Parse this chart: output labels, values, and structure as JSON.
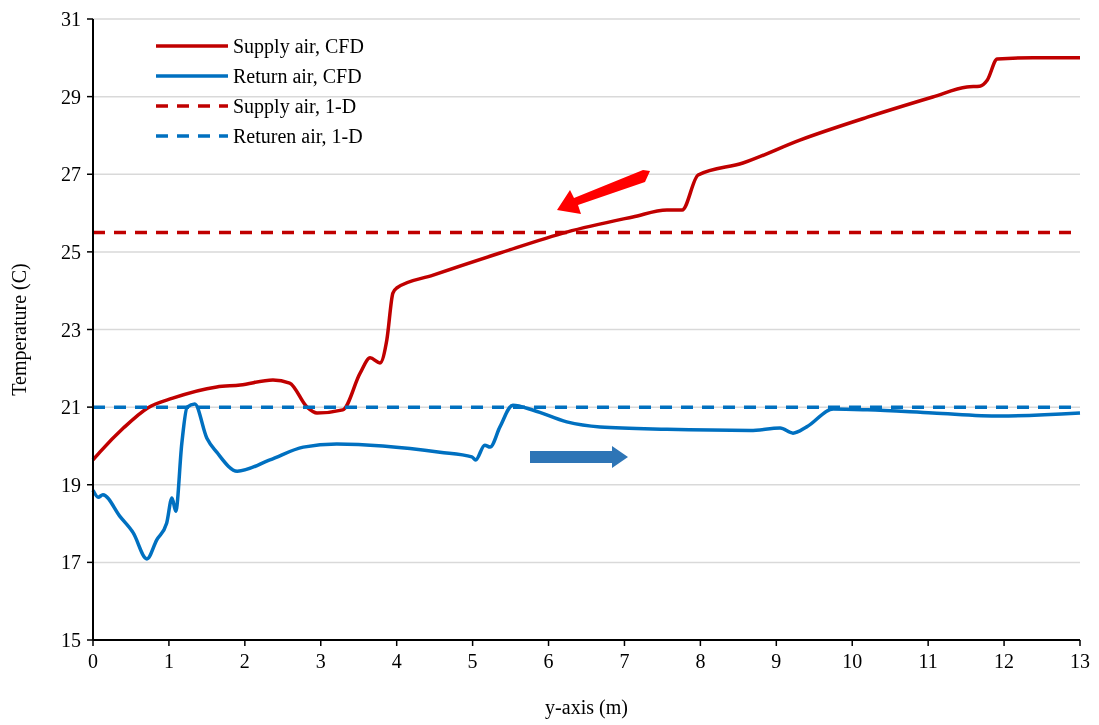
{
  "chart_data": {
    "type": "line",
    "xlabel": "y-axis (m)",
    "ylabel": "Temperature (C)",
    "xlim": [
      0,
      13
    ],
    "xticks": [
      0,
      1,
      2,
      3,
      4,
      5,
      6,
      7,
      8,
      9,
      10,
      11,
      12,
      13
    ],
    "ylim": [
      15,
      31
    ],
    "yticks": [
      15,
      17,
      19,
      21,
      23,
      25,
      27,
      29,
      31
    ],
    "grid": "y",
    "legend": "top left",
    "marker": "none",
    "series": [
      {
        "name": "Supply air, CFD",
        "color": "#c00000",
        "line_style": "solid",
        "x": [
          0,
          0.09,
          0.4,
          0.72,
          1.05,
          1.63,
          1.94,
          2.37,
          2.59,
          2.82,
          2.95,
          3.29,
          3.52,
          3.65,
          3.78,
          3.87,
          3.95,
          4.0,
          4.48,
          5.36,
          6.24,
          7.11,
          7.56,
          7.76,
          7.97,
          8.56,
          9.31,
          10.2,
          11.06,
          11.51,
          11.68,
          11.78,
          11.91,
          12.38,
          13
        ],
        "values": [
          19.64,
          19.84,
          20.46,
          20.98,
          21.23,
          21.52,
          21.57,
          21.7,
          21.62,
          21.0,
          20.85,
          20.93,
          21.88,
          22.27,
          22.14,
          22.73,
          23.94,
          24.07,
          24.4,
          24.97,
          25.51,
          25.9,
          26.08,
          26.08,
          26.98,
          27.29,
          27.88,
          28.47,
          28.99,
          29.25,
          29.27,
          29.43,
          29.97,
          30.0,
          30.0
        ]
      },
      {
        "name": "Return air, CFD",
        "color": "#0070c0",
        "line_style": "solid",
        "x": [
          0,
          0.07,
          0.13,
          0.36,
          0.53,
          0.71,
          0.84,
          0.97,
          1.04,
          1.09,
          1.17,
          1.24,
          1.34,
          1.5,
          1.63,
          1.9,
          2.33,
          2.77,
          3.21,
          4.57,
          4.99,
          5.04,
          5.16,
          5.23,
          5.36,
          5.53,
          5.8,
          6.24,
          6.68,
          7.56,
          8.66,
          9.05,
          9.22,
          9.4,
          9.75,
          10.2,
          11.06,
          11.95,
          13
        ],
        "values": [
          18.86,
          18.68,
          18.74,
          18.17,
          17.76,
          17.09,
          17.58,
          18.01,
          18.66,
          18.32,
          20.07,
          21.0,
          21.08,
          20.2,
          19.84,
          19.35,
          19.64,
          19.97,
          20.05,
          19.84,
          19.72,
          19.64,
          20.02,
          19.97,
          20.49,
          21.05,
          20.92,
          20.62,
          20.49,
          20.43,
          20.4,
          20.46,
          20.33,
          20.49,
          20.95,
          20.93,
          20.85,
          20.77,
          20.85
        ]
      },
      {
        "name": "Supply air, 1-D",
        "color": "#c00000",
        "line_style": "dashed",
        "x": [
          0,
          13
        ],
        "values": [
          25.5,
          25.5
        ]
      },
      {
        "name": "Returen air, 1-D",
        "color": "#0070c0",
        "line_style": "dashed",
        "x": [
          0,
          13
        ],
        "values": [
          21.0,
          21.0
        ]
      }
    ]
  }
}
